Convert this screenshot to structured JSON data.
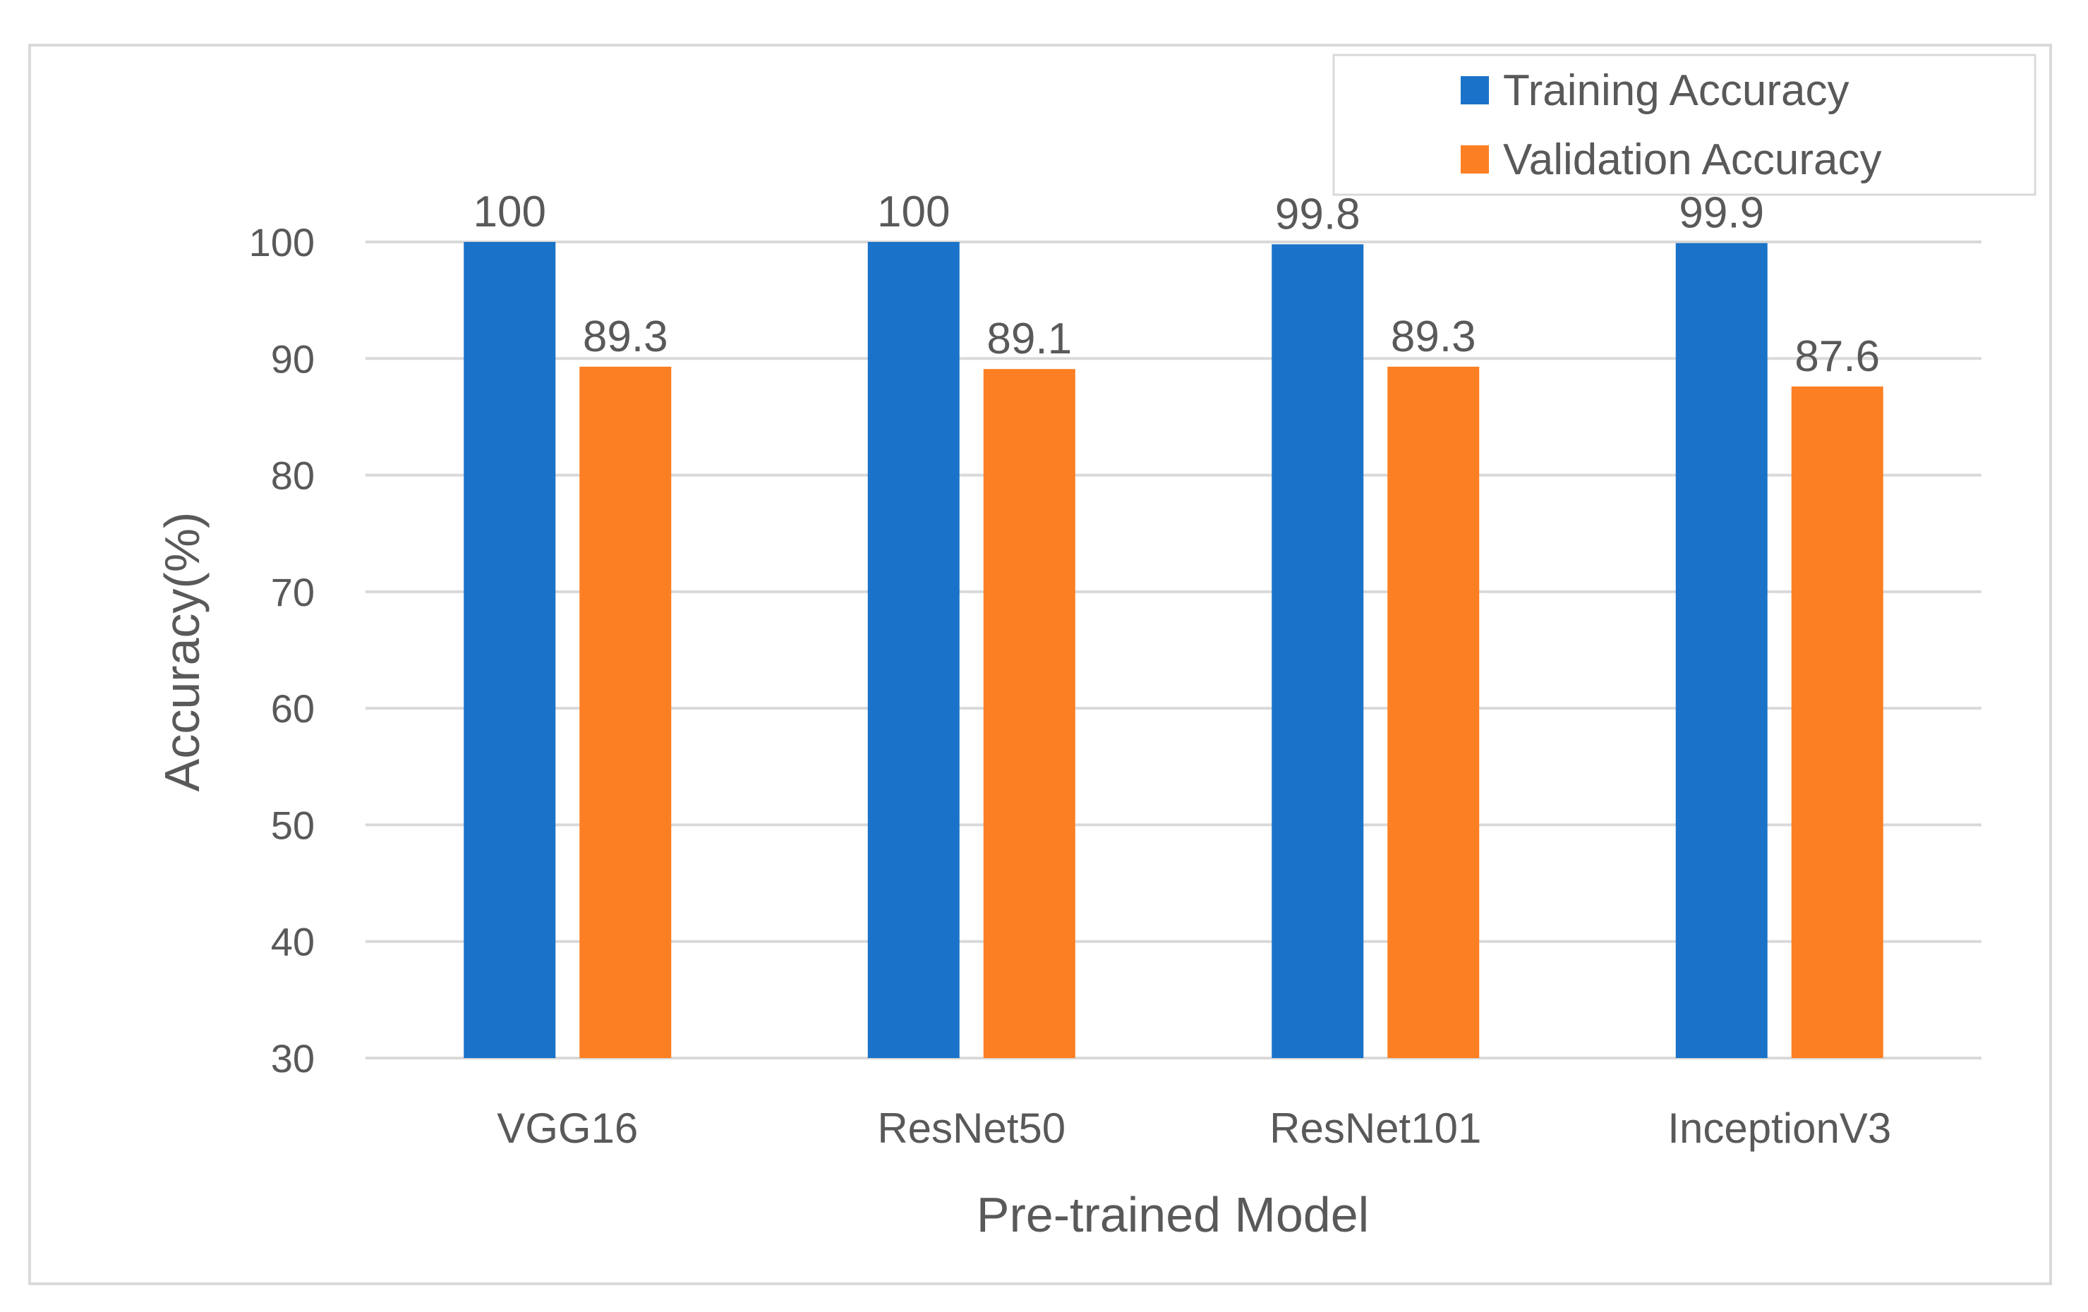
{
  "chart_data": {
    "type": "bar",
    "categories": [
      "VGG16",
      "ResNet50",
      "ResNet101",
      "InceptionV3"
    ],
    "series": [
      {
        "name": "Training Accuracy",
        "values": [
          100,
          100,
          99.8,
          99.9
        ],
        "labels": [
          "100",
          "100",
          "99.8",
          "99.9"
        ],
        "color": "#1a73c8"
      },
      {
        "name": "Validation Accuracy",
        "values": [
          89.3,
          89.1,
          89.3,
          87.6
        ],
        "labels": [
          "89.3",
          "89.1",
          "89.3",
          "87.6"
        ],
        "color": "#fd7f23"
      }
    ],
    "title": "",
    "xlabel": "Pre-trained Model",
    "ylabel": "Accuracy(%)",
    "ylim": [
      30,
      100
    ],
    "yticks": [
      30,
      40,
      50,
      60,
      70,
      80,
      90,
      100
    ],
    "grid": true,
    "legend_position": "top-right"
  }
}
